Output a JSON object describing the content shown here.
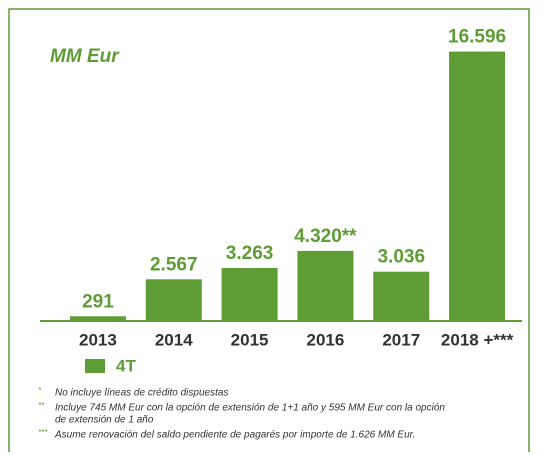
{
  "chart_data": {
    "type": "bar",
    "title": "MM Eur",
    "categories": [
      "2013",
      "2014",
      "2015",
      "2016",
      "2017",
      "2018 +***"
    ],
    "values": [
      291,
      2567,
      3263,
      4320,
      3036,
      16596
    ],
    "value_labels": [
      "291",
      "2.567",
      "3.263",
      "4.320**",
      "3.036",
      "16.596"
    ],
    "color": "#5e9c35",
    "ylim": [
      0,
      17000
    ],
    "legend": {
      "name": "4T",
      "position": "bottom-left"
    },
    "footnotes": [
      {
        "mark": "*",
        "lines": [
          "No incluye líneas de crédito dispuestas"
        ]
      },
      {
        "mark": "**",
        "lines": [
          "Incluye 745 MM Eur con la opción de extensión de 1+1 año y 595 MM Eur con la opción",
          "de extensión de 1 año"
        ]
      },
      {
        "mark": "***",
        "lines": [
          "Asume renovación del saldo pendiente de pagarés por importe de 1.626 MM Eur."
        ]
      }
    ]
  }
}
